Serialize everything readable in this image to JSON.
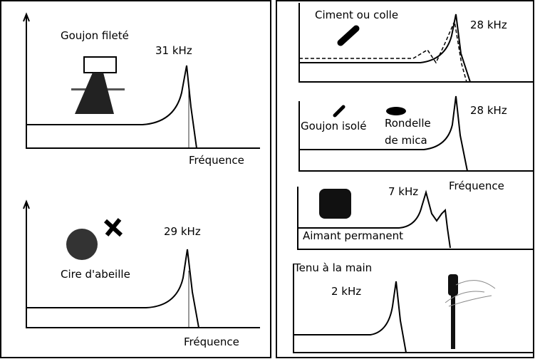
{
  "panels": [
    {
      "label": "Goujon fileté",
      "peak": "31 kHz",
      "axis": "Fréquence"
    },
    {
      "label": "Cire d'abeille",
      "peak": "29 kHz",
      "axis": "Fréquence"
    },
    {
      "label": "Ciment ou colle",
      "peak": "28 kHz"
    },
    {
      "label": "Goujon isolé",
      "label2": [
        "Rondelle",
        "de mica"
      ],
      "peak": "28 kHz",
      "axis": "Fréquence"
    },
    {
      "label": "Aimant permanent",
      "peak": "7 kHz"
    },
    {
      "label": "Tenu à la main",
      "peak": "2 kHz"
    }
  ]
}
